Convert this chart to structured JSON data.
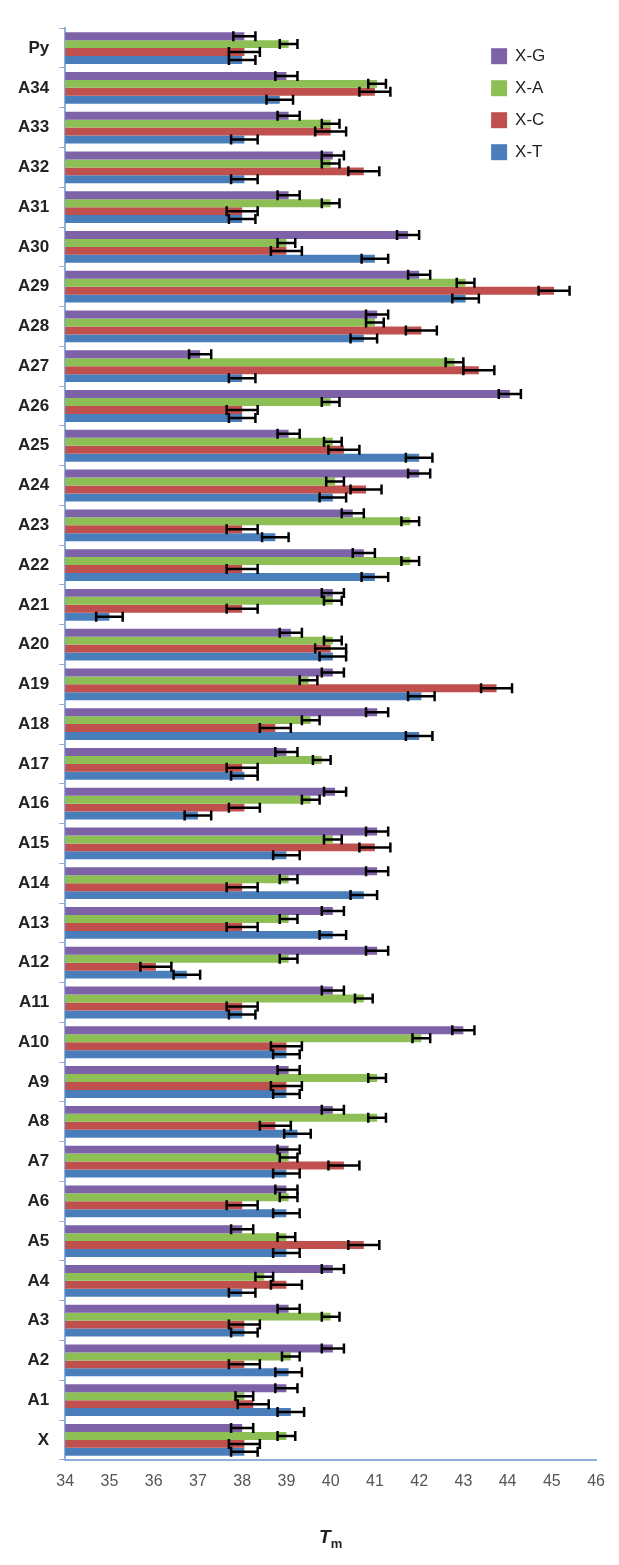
{
  "chart_data": {
    "type": "bar",
    "orientation": "horizontal",
    "xlabel": "T$_{m}$",
    "categories": [
      "Py",
      "A34",
      "A33",
      "A32",
      "A31",
      "A30",
      "A29",
      "A28",
      "A27",
      "A26",
      "A25",
      "A24",
      "A23",
      "A22",
      "A21",
      "A20",
      "A19",
      "A18",
      "A17",
      "A16",
      "A15",
      "A14",
      "A13",
      "A12",
      "A11",
      "A10",
      "A9",
      "A8",
      "A7",
      "A6",
      "A5",
      "A4",
      "A3",
      "A2",
      "A1",
      "X"
    ],
    "xlim": [
      34,
      46
    ],
    "xticks": [
      34,
      35,
      36,
      37,
      38,
      39,
      40,
      41,
      42,
      43,
      44,
      45,
      46
    ],
    "grid": false,
    "legend": "top right",
    "series": [
      {
        "name": "X-G",
        "color": "#7e62a8",
        "values": [
          38.05,
          39.0,
          39.05,
          40.05,
          39.05,
          41.75,
          42.0,
          41.05,
          37.05,
          44.05,
          39.05,
          42.0,
          40.5,
          40.75,
          40.05,
          39.1,
          40.05,
          41.05,
          39.0,
          40.1,
          41.05,
          41.05,
          40.05,
          41.05,
          40.05,
          43.0,
          39.05,
          40.05,
          39.05,
          39.0,
          38.0,
          40.05,
          39.05,
          40.05,
          39.0,
          38.0
        ],
        "errors": [
          0.25,
          0.25,
          0.25,
          0.25,
          0.25,
          0.25,
          0.25,
          0.25,
          0.25,
          0.25,
          0.25,
          0.25,
          0.25,
          0.25,
          0.25,
          0.25,
          0.25,
          0.25,
          0.25,
          0.25,
          0.25,
          0.25,
          0.25,
          0.25,
          0.25,
          0.25,
          0.25,
          0.25,
          0.25,
          0.25,
          0.25,
          0.25,
          0.25,
          0.25,
          0.25,
          0.25
        ]
      },
      {
        "name": "X-A",
        "color": "#8dbf55",
        "values": [
          39.05,
          41.05,
          40.0,
          40.0,
          40.0,
          39.0,
          43.05,
          41.0,
          42.8,
          40.0,
          40.05,
          40.1,
          41.8,
          41.8,
          40.05,
          40.05,
          39.5,
          39.55,
          39.8,
          39.55,
          40.05,
          39.05,
          39.05,
          39.05,
          40.75,
          42.05,
          41.05,
          41.05,
          39.05,
          39.05,
          39.0,
          38.5,
          40.0,
          39.1,
          38.05,
          39.0
        ],
        "errors": [
          0.2,
          0.2,
          0.2,
          0.2,
          0.2,
          0.2,
          0.2,
          0.2,
          0.2,
          0.2,
          0.2,
          0.2,
          0.2,
          0.2,
          0.2,
          0.2,
          0.2,
          0.2,
          0.2,
          0.2,
          0.2,
          0.2,
          0.2,
          0.2,
          0.2,
          0.2,
          0.2,
          0.2,
          0.2,
          0.2,
          0.2,
          0.2,
          0.2,
          0.2,
          0.2,
          0.2
        ]
      },
      {
        "name": "X-C",
        "color": "#c0504d",
        "values": [
          38.05,
          41.0,
          40.0,
          40.75,
          38.0,
          39.0,
          45.05,
          42.05,
          43.35,
          38.0,
          40.3,
          40.8,
          38.0,
          38.0,
          38.0,
          40.0,
          43.75,
          38.75,
          38.0,
          38.05,
          41.0,
          38.0,
          38.0,
          36.05,
          38.0,
          39.0,
          39.0,
          38.75,
          40.3,
          38.0,
          40.75,
          39.0,
          38.05,
          38.05,
          38.25,
          38.05
        ],
        "errors": [
          0.35,
          0.35,
          0.35,
          0.35,
          0.35,
          0.35,
          0.35,
          0.35,
          0.35,
          0.35,
          0.35,
          0.35,
          0.35,
          0.35,
          0.35,
          0.35,
          0.35,
          0.35,
          0.35,
          0.35,
          0.35,
          0.35,
          0.35,
          0.35,
          0.35,
          0.35,
          0.35,
          0.35,
          0.35,
          0.35,
          0.35,
          0.35,
          0.35,
          0.35,
          0.35,
          0.35
        ]
      },
      {
        "name": "X-T",
        "color": "#4a7ebb",
        "values": [
          38.0,
          38.85,
          38.05,
          38.05,
          38.0,
          41.0,
          43.05,
          40.75,
          38.0,
          38.0,
          42.0,
          40.05,
          38.75,
          41.0,
          35.0,
          40.05,
          42.05,
          42.0,
          38.05,
          37.0,
          39.0,
          40.75,
          40.05,
          36.75,
          38.0,
          39.0,
          39.0,
          39.25,
          39.0,
          39.0,
          39.0,
          38.0,
          38.05,
          39.05,
          39.1,
          38.05
        ],
        "errors": [
          0.3,
          0.3,
          0.3,
          0.3,
          0.3,
          0.3,
          0.3,
          0.3,
          0.3,
          0.3,
          0.3,
          0.3,
          0.3,
          0.3,
          0.3,
          0.3,
          0.3,
          0.3,
          0.3,
          0.3,
          0.3,
          0.3,
          0.3,
          0.3,
          0.3,
          0.3,
          0.3,
          0.3,
          0.3,
          0.3,
          0.3,
          0.3,
          0.3,
          0.3,
          0.3,
          0.3
        ]
      }
    ]
  }
}
